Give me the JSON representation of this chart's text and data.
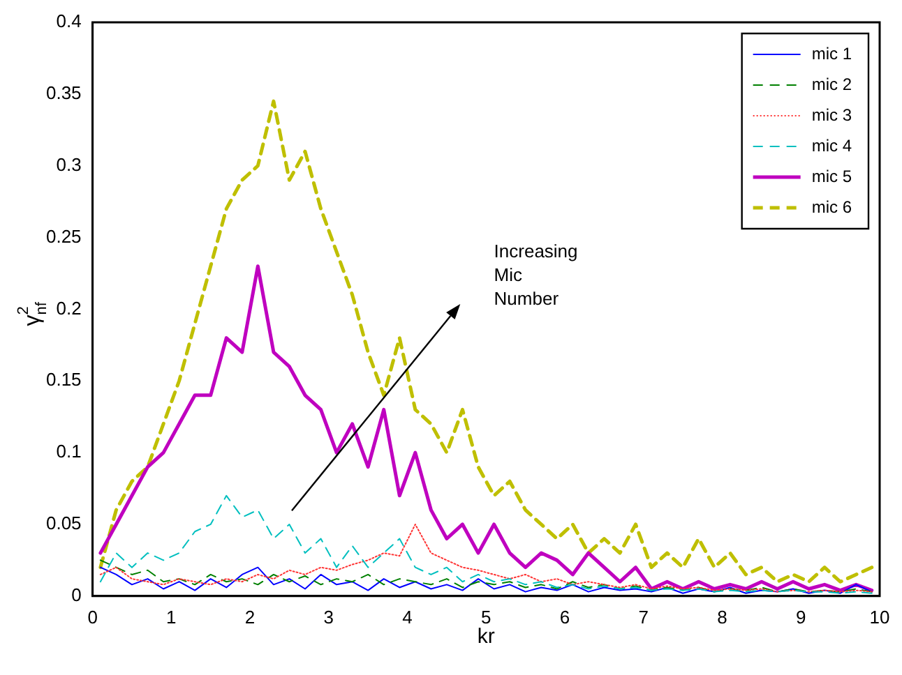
{
  "chart_data": {
    "type": "line",
    "xlabel": "kr",
    "ylabel": "γ$_{nf}$$^{2}$",
    "x": [
      0.1,
      0.3,
      0.5,
      0.7,
      0.9,
      1.1,
      1.3,
      1.5,
      1.7,
      1.9,
      2.1,
      2.3,
      2.5,
      2.7,
      2.9,
      3.1,
      3.3,
      3.5,
      3.7,
      3.9,
      4.1,
      4.3,
      4.5,
      4.7,
      4.9,
      5.1,
      5.3,
      5.5,
      5.7,
      5.9,
      6.1,
      6.3,
      6.5,
      6.7,
      6.9,
      7.1,
      7.3,
      7.5,
      7.7,
      7.9,
      8.1,
      8.3,
      8.5,
      8.7,
      8.9,
      9.1,
      9.3,
      9.5,
      9.7,
      9.9
    ],
    "xlim": [
      0,
      10
    ],
    "xticks": [
      0,
      1,
      2,
      3,
      4,
      5,
      6,
      7,
      8,
      9,
      10
    ],
    "ylim": [
      0,
      0.4
    ],
    "yticks": [
      0,
      0.05,
      0.1,
      0.15,
      0.2,
      0.25,
      0.3,
      0.35,
      0.4
    ],
    "grid": false,
    "legend": "top right",
    "series": [
      {
        "name": "mic 1",
        "color": "#0000ff",
        "line_style": "solid",
        "values": [
          0.02,
          0.015,
          0.008,
          0.012,
          0.005,
          0.01,
          0.004,
          0.012,
          0.006,
          0.015,
          0.02,
          0.008,
          0.012,
          0.005,
          0.015,
          0.008,
          0.01,
          0.004,
          0.012,
          0.006,
          0.01,
          0.005,
          0.008,
          0.004,
          0.012,
          0.005,
          0.008,
          0.003,
          0.006,
          0.004,
          0.008,
          0.003,
          0.006,
          0.004,
          0.005,
          0.003,
          0.006,
          0.002,
          0.005,
          0.003,
          0.006,
          0.002,
          0.004,
          0.003,
          0.005,
          0.002,
          0.004,
          0.002,
          0.008,
          0.003
        ]
      },
      {
        "name": "mic 2",
        "color": "#008000",
        "line_style": "dashed",
        "values": [
          0.025,
          0.02,
          0.015,
          0.018,
          0.01,
          0.012,
          0.008,
          0.015,
          0.01,
          0.012,
          0.008,
          0.015,
          0.01,
          0.014,
          0.008,
          0.012,
          0.01,
          0.015,
          0.008,
          0.012,
          0.01,
          0.008,
          0.012,
          0.006,
          0.01,
          0.008,
          0.01,
          0.006,
          0.008,
          0.005,
          0.01,
          0.006,
          0.008,
          0.005,
          0.007,
          0.004,
          0.006,
          0.004,
          0.006,
          0.003,
          0.005,
          0.004,
          0.006,
          0.003,
          0.005,
          0.003,
          0.004,
          0.003,
          0.005,
          0.003
        ]
      },
      {
        "name": "mic 3",
        "color": "#ff3333",
        "line_style": "dotted",
        "values": [
          0.015,
          0.02,
          0.012,
          0.01,
          0.008,
          0.012,
          0.01,
          0.008,
          0.012,
          0.01,
          0.015,
          0.012,
          0.018,
          0.015,
          0.02,
          0.018,
          0.022,
          0.025,
          0.03,
          0.028,
          0.05,
          0.03,
          0.025,
          0.02,
          0.018,
          0.015,
          0.012,
          0.015,
          0.01,
          0.012,
          0.008,
          0.01,
          0.008,
          0.006,
          0.008,
          0.005,
          0.007,
          0.005,
          0.006,
          0.004,
          0.005,
          0.004,
          0.005,
          0.003,
          0.004,
          0.003,
          0.004,
          0.003,
          0.004,
          0.003
        ]
      },
      {
        "name": "mic 4",
        "color": "#00bfbf",
        "line_style": "dashed",
        "values": [
          0.01,
          0.03,
          0.02,
          0.03,
          0.025,
          0.03,
          0.045,
          0.05,
          0.07,
          0.055,
          0.06,
          0.04,
          0.05,
          0.03,
          0.04,
          0.02,
          0.035,
          0.02,
          0.03,
          0.04,
          0.02,
          0.015,
          0.02,
          0.01,
          0.015,
          0.01,
          0.012,
          0.008,
          0.01,
          0.006,
          0.008,
          0.005,
          0.007,
          0.005,
          0.006,
          0.004,
          0.005,
          0.004,
          0.005,
          0.003,
          0.004,
          0.003,
          0.004,
          0.003,
          0.004,
          0.003,
          0.003,
          0.002,
          0.003,
          0.002
        ]
      },
      {
        "name": "mic 5",
        "color": "#bf00bf",
        "line_style": "solid",
        "values": [
          0.03,
          0.05,
          0.07,
          0.09,
          0.1,
          0.12,
          0.14,
          0.14,
          0.18,
          0.17,
          0.23,
          0.17,
          0.16,
          0.14,
          0.13,
          0.1,
          0.12,
          0.09,
          0.13,
          0.07,
          0.1,
          0.06,
          0.04,
          0.05,
          0.03,
          0.05,
          0.03,
          0.02,
          0.03,
          0.025,
          0.015,
          0.03,
          0.02,
          0.01,
          0.02,
          0.005,
          0.01,
          0.005,
          0.01,
          0.005,
          0.008,
          0.005,
          0.01,
          0.005,
          0.01,
          0.005,
          0.008,
          0.004,
          0.008,
          0.004
        ]
      },
      {
        "name": "mic 6",
        "color": "#bfbf00",
        "line_style": "dashed",
        "values": [
          0.02,
          0.06,
          0.08,
          0.09,
          0.12,
          0.15,
          0.19,
          0.23,
          0.27,
          0.29,
          0.3,
          0.345,
          0.29,
          0.31,
          0.27,
          0.24,
          0.21,
          0.17,
          0.14,
          0.18,
          0.13,
          0.12,
          0.1,
          0.13,
          0.09,
          0.07,
          0.08,
          0.06,
          0.05,
          0.04,
          0.05,
          0.03,
          0.04,
          0.03,
          0.05,
          0.02,
          0.03,
          0.02,
          0.04,
          0.02,
          0.03,
          0.015,
          0.02,
          0.01,
          0.015,
          0.01,
          0.02,
          0.01,
          0.015,
          0.02
        ]
      }
    ],
    "annotations": [
      "Increasing\nMic\nNumber"
    ]
  }
}
